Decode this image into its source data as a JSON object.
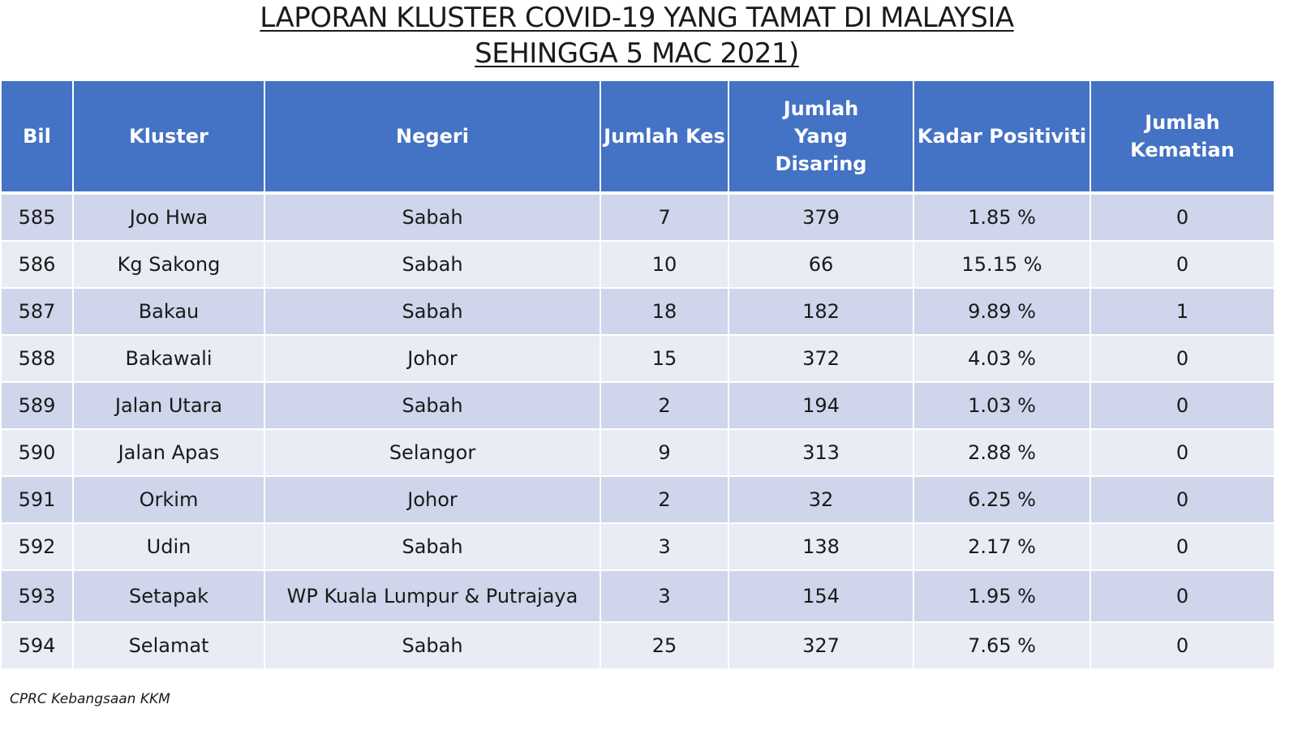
{
  "title": {
    "line1": "LAPORAN KLUSTER COVID-19 YANG TAMAT DI MALAYSIA",
    "line2": "SEHINGGA 5 MAC 2021)"
  },
  "table": {
    "headers": {
      "bil": "Bil",
      "kluster": "Kluster",
      "negeri": "Negeri",
      "jumlah_kes": "Jumlah Kes",
      "jumlah_disaring": "Jumlah Yang Disaring",
      "kadar_positiviti": "Kadar Positiviti",
      "jumlah_kematian": "Jumlah Kematian"
    },
    "rows": [
      {
        "bil": "585",
        "kluster": "Joo Hwa",
        "negeri": "Sabah",
        "kes": "7",
        "disaring": "379",
        "positiviti": "1.85 %",
        "kematian": "0"
      },
      {
        "bil": "586",
        "kluster": "Kg Sakong",
        "negeri": "Sabah",
        "kes": "10",
        "disaring": "66",
        "positiviti": "15.15 %",
        "kematian": "0"
      },
      {
        "bil": "587",
        "kluster": "Bakau",
        "negeri": "Sabah",
        "kes": "18",
        "disaring": "182",
        "positiviti": "9.89 %",
        "kematian": "1"
      },
      {
        "bil": "588",
        "kluster": "Bakawali",
        "negeri": "Johor",
        "kes": "15",
        "disaring": "372",
        "positiviti": "4.03 %",
        "kematian": "0"
      },
      {
        "bil": "589",
        "kluster": "Jalan Utara",
        "negeri": "Sabah",
        "kes": "2",
        "disaring": "194",
        "positiviti": "1.03 %",
        "kematian": "0"
      },
      {
        "bil": "590",
        "kluster": "Jalan Apas",
        "negeri": "Selangor",
        "kes": "9",
        "disaring": "313",
        "positiviti": "2.88 %",
        "kematian": "0"
      },
      {
        "bil": "591",
        "kluster": "Orkim",
        "negeri": "Johor",
        "kes": "2",
        "disaring": "32",
        "positiviti": "6.25 %",
        "kematian": "0"
      },
      {
        "bil": "592",
        "kluster": "Udin",
        "negeri": "Sabah",
        "kes": "3",
        "disaring": "138",
        "positiviti": "2.17 %",
        "kematian": "0"
      },
      {
        "bil": "593",
        "kluster": "Setapak",
        "negeri": "WP Kuala Lumpur & Putrajaya",
        "kes": "3",
        "disaring": "154",
        "positiviti": "1.95 %",
        "kematian": "0"
      },
      {
        "bil": "594",
        "kluster": "Selamat",
        "negeri": "Sabah",
        "kes": "25",
        "disaring": "327",
        "positiviti": "7.65 %",
        "kematian": "0"
      }
    ]
  },
  "footer": {
    "source": "CPRC Kebangsaan KKM"
  },
  "colors": {
    "header_bg": "#4472c4",
    "row_odd": "#cfd5ea",
    "row_even": "#e9ebf5"
  }
}
